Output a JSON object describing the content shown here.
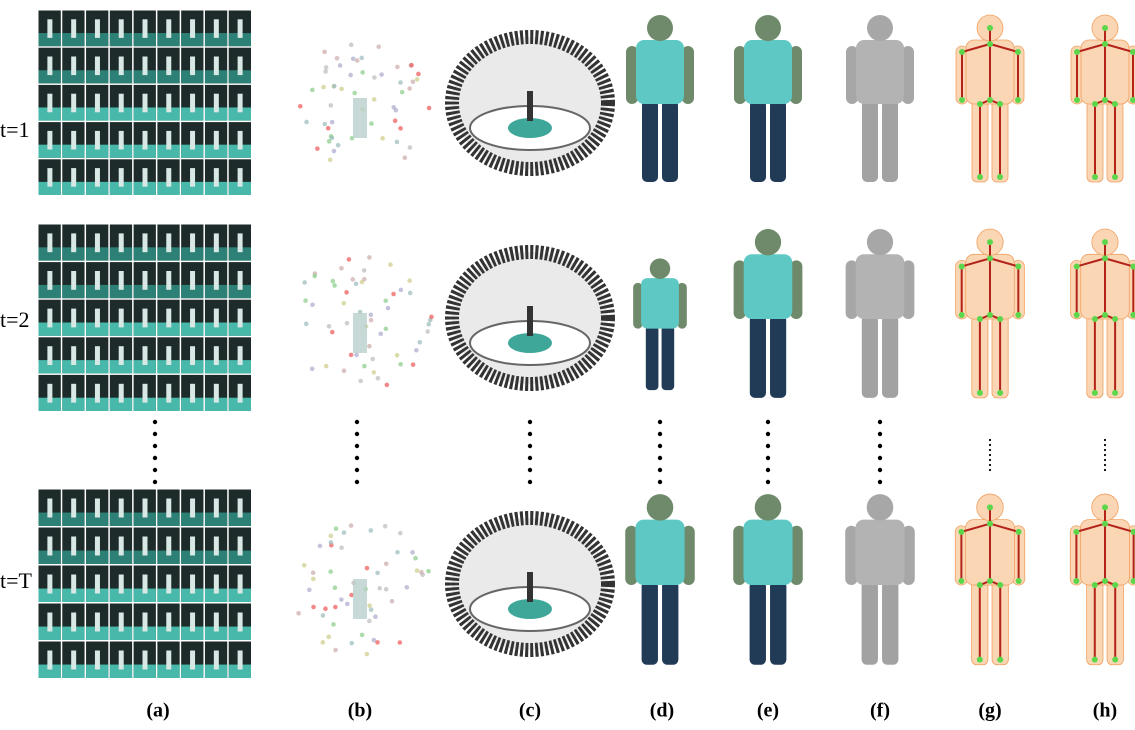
{
  "row_labels": [
    "t=1",
    "t=2",
    "t=T"
  ],
  "column_labels": [
    "(a)",
    "(b)",
    "(c)",
    "(d)",
    "(e)",
    "(f)",
    "(g)",
    "(h)"
  ]
}
